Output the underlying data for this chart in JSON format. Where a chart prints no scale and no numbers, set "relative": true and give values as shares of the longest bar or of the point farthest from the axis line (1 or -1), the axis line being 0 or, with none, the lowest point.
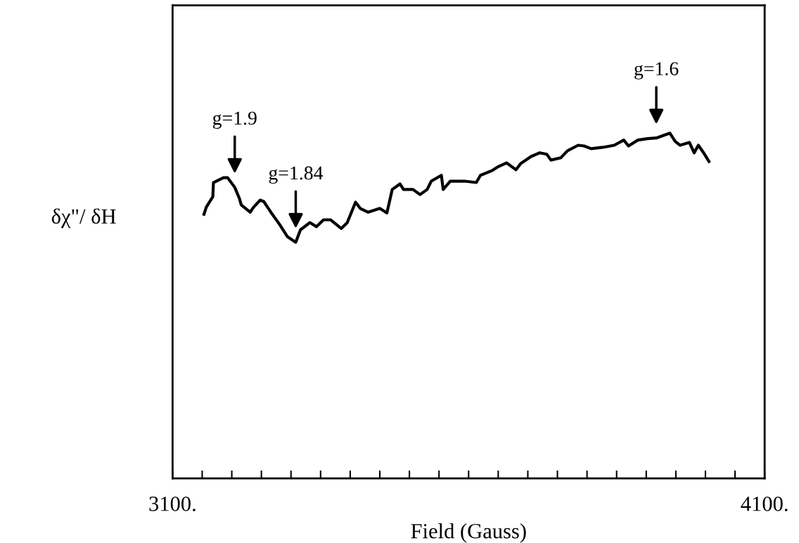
{
  "chart_data": {
    "type": "line",
    "relative": true,
    "xlabel": "Field (Gauss)",
    "ylabel": "δχ\"/ δH",
    "xlim": [
      3100,
      4100
    ],
    "xticks": [
      {
        "value": 3100,
        "label": "3100."
      },
      {
        "value": 3150,
        "label": null
      },
      {
        "value": 3200,
        "label": null
      },
      {
        "value": 3250,
        "label": null
      },
      {
        "value": 3300,
        "label": null
      },
      {
        "value": 3350,
        "label": null
      },
      {
        "value": 3400,
        "label": null
      },
      {
        "value": 3450,
        "label": null
      },
      {
        "value": 3500,
        "label": null
      },
      {
        "value": 3550,
        "label": null
      },
      {
        "value": 3600,
        "label": null
      },
      {
        "value": 3650,
        "label": null
      },
      {
        "value": 3700,
        "label": null
      },
      {
        "value": 3750,
        "label": null
      },
      {
        "value": 3800,
        "label": null
      },
      {
        "value": 3850,
        "label": null
      },
      {
        "value": 3900,
        "label": null
      },
      {
        "value": 3950,
        "label": null
      },
      {
        "value": 4000,
        "label": null
      },
      {
        "value": 4050,
        "label": null
      },
      {
        "value": 4100,
        "label": "4100."
      }
    ],
    "tick_labels": "x",
    "grid": false,
    "legend": false,
    "marker": "none",
    "line_style": "solid",
    "annotations": [
      {
        "text": "g=1.9",
        "x": 3205,
        "y": 0.843
      },
      {
        "text": "g=1.84",
        "x": 3308,
        "y": 0.684
      },
      {
        "text": "g=1.6",
        "x": 3917,
        "y": 0.986
      }
    ],
    "series": [
      {
        "color": "#000000",
        "x": [
          3153,
          3157,
          3168,
          3169,
          3186,
          3193,
          3205,
          3213,
          3216,
          3231,
          3237,
          3248,
          3254,
          3266,
          3281,
          3294,
          3308,
          3316,
          3332,
          3343,
          3355,
          3367,
          3385,
          3395,
          3409,
          3417,
          3430,
          3450,
          3462,
          3471,
          3484,
          3490,
          3506,
          3518,
          3530,
          3537,
          3554,
          3557,
          3569,
          3593,
          3613,
          3620,
          3640,
          3649,
          3664,
          3680,
          3688,
          3706,
          3720,
          3732,
          3739,
          3756,
          3767,
          3785,
          3795,
          3807,
          3827,
          3846,
          3862,
          3870,
          3886,
          3902,
          3917,
          3940,
          3949,
          3957,
          3973,
          3981,
          3988,
          3997,
          4006
        ],
        "values": [
          0.765,
          0.786,
          0.816,
          0.857,
          0.871,
          0.871,
          0.843,
          0.81,
          0.792,
          0.771,
          0.786,
          0.806,
          0.802,
          0.771,
          0.735,
          0.7,
          0.684,
          0.72,
          0.741,
          0.729,
          0.749,
          0.749,
          0.724,
          0.741,
          0.8,
          0.782,
          0.771,
          0.782,
          0.769,
          0.837,
          0.853,
          0.837,
          0.837,
          0.822,
          0.837,
          0.861,
          0.878,
          0.837,
          0.861,
          0.861,
          0.857,
          0.878,
          0.892,
          0.902,
          0.914,
          0.894,
          0.912,
          0.933,
          0.943,
          0.939,
          0.922,
          0.929,
          0.949,
          0.965,
          0.963,
          0.955,
          0.959,
          0.965,
          0.98,
          0.963,
          0.98,
          0.984,
          0.986,
          1,
          0.976,
          0.965,
          0.973,
          0.943,
          0.965,
          0.943,
          0.918
        ]
      }
    ]
  }
}
